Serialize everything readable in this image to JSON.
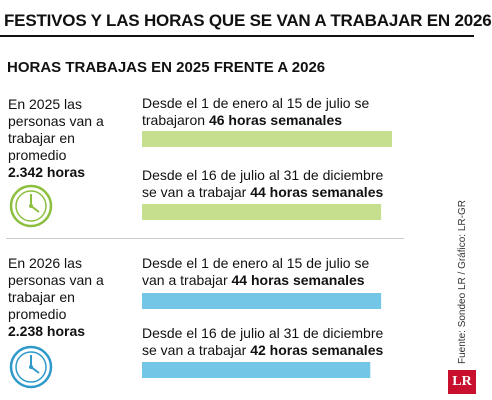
{
  "header": {
    "title": "FESTIVOS Y LAS HORAS QUE SE VAN A TRABAJAR EN 2026",
    "subtitle": "HORAS TRABAJAS EN 2025 FRENTE A 2026"
  },
  "sections": [
    {
      "intro": "En 2025 las personas van a trabajar en promedio",
      "total": "2.342 horas",
      "periods": [
        {
          "line1": "Desde el 1 de enero al 15 de julio se",
          "line2_prefix": "trabajaron",
          "hours_label": "46 horas semanales"
        },
        {
          "line1": "Desde el 16 de julio al 31 de diciembre",
          "line2_prefix": "se van a trabajar",
          "hours_label": "44 horas semanales"
        }
      ]
    },
    {
      "intro": "En 2026 las personas van a trabajar en promedio",
      "total": "2.238 horas",
      "periods": [
        {
          "line1": "Desde el 1 de enero al 15 de julio se",
          "line2_prefix": "van a trabajar",
          "hours_label": "44 horas semanales"
        },
        {
          "line1": "Desde el 16 de julio al 31 de diciembre",
          "line2_prefix": "se van a trabajar",
          "hours_label": "42 horas semanales"
        }
      ]
    }
  ],
  "chart_data": {
    "type": "bar",
    "orientation": "horizontal",
    "title": "HORAS TRABAJAS EN 2025 FRENTE A 2026",
    "categories": [
      "Desde el 1 de enero al 15 de julio (2025)",
      "Desde el 16 de julio al 31 de diciembre (2025)",
      "Desde el 1 de enero al 15 de julio (2026)",
      "Desde el 16 de julio al 31 de diciembre (2026)"
    ],
    "values": [
      46,
      44,
      44,
      42
    ],
    "colors": [
      "#c5df8f",
      "#c5df8f",
      "#74c6e6",
      "#74c6e6"
    ],
    "xlim": [
      0,
      46
    ],
    "grid": false
  },
  "source": "Fuente: Sondeo LR / Gráfico: LR-GR",
  "logo": "LR",
  "colors": {
    "green_bar": "#c5df8f",
    "blue_bar": "#74c6e6",
    "clock_green": "#8dbf3f",
    "clock_blue": "#2f9ac9"
  },
  "icons": [
    "clock-icon",
    "clock-icon"
  ]
}
